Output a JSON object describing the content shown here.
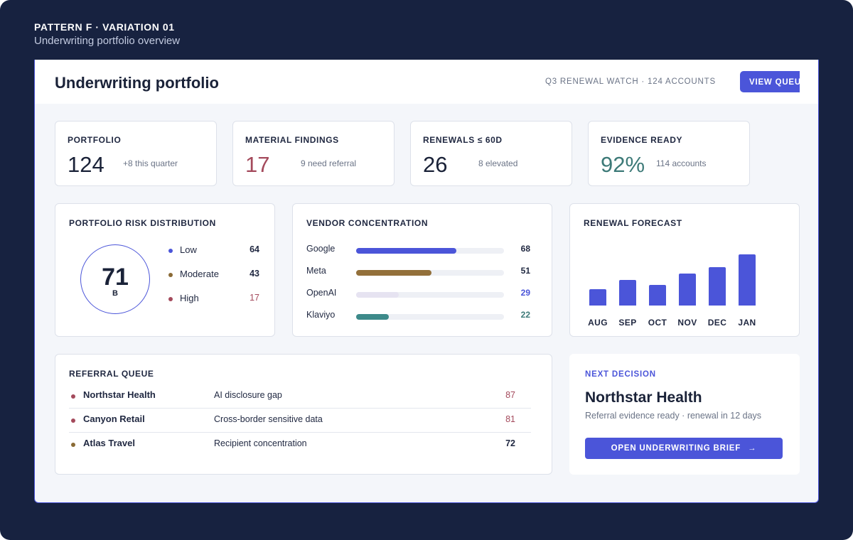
{
  "header": {
    "eyebrow": "PATTERN F · VARIATION 01",
    "subtitle": "Underwriting portfolio overview"
  },
  "topbar": {
    "title": "Underwriting portfolio",
    "watch": "Q3 RENEWAL WATCH · 124 ACCOUNTS",
    "view_queue_label": "VIEW QUEUE"
  },
  "kpis": [
    {
      "label": "PORTFOLIO",
      "value": "124",
      "note": "+8 this quarter",
      "color": "#1a2238"
    },
    {
      "label": "MATERIAL FINDINGS",
      "value": "17",
      "note": "9 need referral",
      "color": "#a44a5c"
    },
    {
      "label": "RENEWALS ≤ 60D",
      "value": "26",
      "note": "8 elevated",
      "color": "#1a2238"
    },
    {
      "label": "EVIDENCE READY",
      "value": "92%",
      "note": "114 accounts",
      "color": "#3d7a78"
    }
  ],
  "risk": {
    "title": "PORTFOLIO RISK DISTRIBUTION",
    "score": "71",
    "grade": "B",
    "legend": [
      {
        "name": "Low",
        "value": "64",
        "dot_color": "#4b55d9",
        "value_color": "#1f2740"
      },
      {
        "name": "Moderate",
        "value": "43",
        "dot_color": "#8a6a35",
        "value_color": "#1f2740"
      },
      {
        "name": "High",
        "value": "17",
        "dot_color": "#a44a5c",
        "value_color": "#a44a5c"
      }
    ]
  },
  "vendors": {
    "title": "VENDOR CONCENTRATION",
    "max": 100,
    "items": [
      {
        "name": "Google",
        "value": 68,
        "fill_color": "#4b55d9",
        "value_color": "#1f2740"
      },
      {
        "name": "Meta",
        "value": 51,
        "fill_color": "#93703a",
        "value_color": "#1f2740"
      },
      {
        "name": "OpenAI",
        "value": 29,
        "fill_color": "#e6e3f1",
        "value_color": "#4b55d9"
      },
      {
        "name": "Klaviyo",
        "value": 22,
        "fill_color": "#3d8a8a",
        "value_color": "#3d7a78"
      }
    ]
  },
  "forecast": {
    "title": "RENEWAL FORECAST",
    "months": [
      {
        "label": "AUG",
        "level": 0.32
      },
      {
        "label": "SEP",
        "level": 0.5
      },
      {
        "label": "OCT",
        "level": 0.4
      },
      {
        "label": "NOV",
        "level": 0.63
      },
      {
        "label": "DEC",
        "level": 0.75
      },
      {
        "label": "JAN",
        "level": 1.0
      }
    ]
  },
  "queue": {
    "title": "REFERRAL QUEUE",
    "rows": [
      {
        "name": "Northstar Health",
        "issue": "AI disclosure gap",
        "score": "87",
        "dot_color": "#a44a5c",
        "score_color": "#a44a5c"
      },
      {
        "name": "Canyon Retail",
        "issue": "Cross-border sensitive data",
        "score": "81",
        "dot_color": "#a44a5c",
        "score_color": "#a44a5c"
      },
      {
        "name": "Atlas Travel",
        "issue": "Recipient concentration",
        "score": "72",
        "dot_color": "#8a6a35",
        "score_color": "#1f2740"
      }
    ]
  },
  "next": {
    "eyebrow": "NEXT DECISION",
    "title": "Northstar Health",
    "subtitle": "Referral evidence ready · renewal in 12 days",
    "cta_label": "OPEN UNDERWRITING BRIEF",
    "cta_icon": "arrow-right-icon"
  }
}
